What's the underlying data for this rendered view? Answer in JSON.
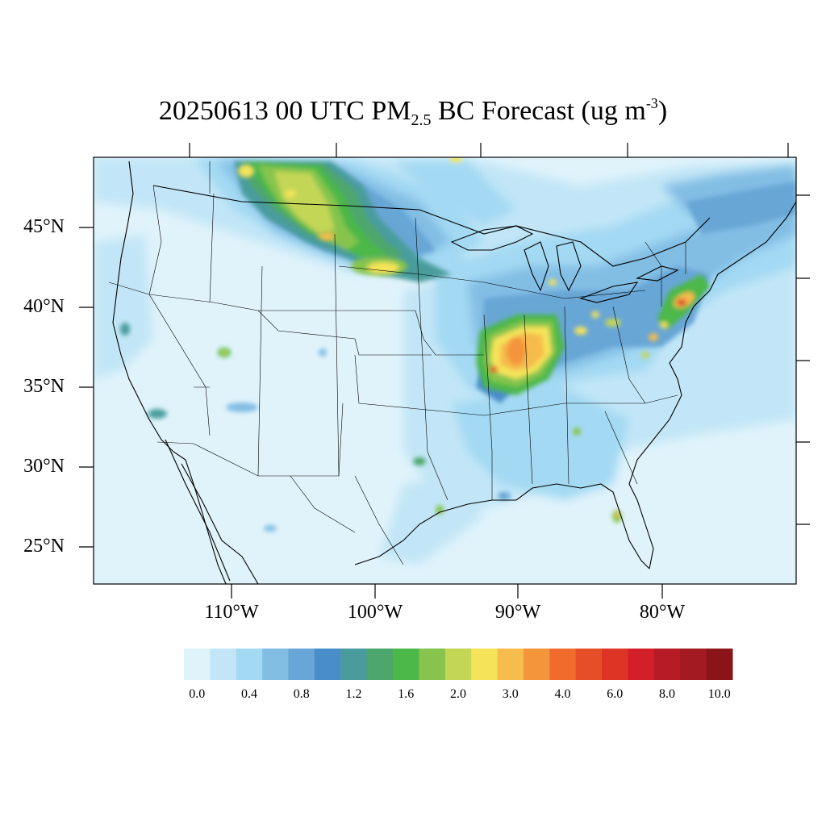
{
  "title": {
    "date": "20250613",
    "time": "00 UTC",
    "species": "PM",
    "species_sub": "2.5",
    "name": "BC Forecast",
    "units_open": "(ug m",
    "units_sup": "-3",
    "units_close": ")"
  },
  "lat_labels": [
    "45°N",
    "40°N",
    "35°N",
    "30°N",
    "25°N"
  ],
  "lon_labels": [
    "110°W",
    "100°W",
    "90°W",
    "80°W"
  ],
  "colorbar": {
    "colors": [
      "#e0f3fb",
      "#c2e6f7",
      "#a3d9f3",
      "#82bde4",
      "#67a6d6",
      "#4a8ec9",
      "#4a9c9c",
      "#4da66c",
      "#4cb84a",
      "#86c44d",
      "#c4d656",
      "#f5e45a",
      "#f6bc4c",
      "#f4953c",
      "#f06b2c",
      "#e64e2a",
      "#dd3426",
      "#d21f2a",
      "#b71c26",
      "#a31a22",
      "#8b1418"
    ],
    "labels": [
      "0.0",
      "0.4",
      "0.8",
      "1.2",
      "1.6",
      "2.0",
      "3.0",
      "4.0",
      "6.0",
      "8.0",
      "10.0"
    ]
  },
  "map_colors": {
    "background": "#e0f3fb",
    "border": "#000000"
  }
}
